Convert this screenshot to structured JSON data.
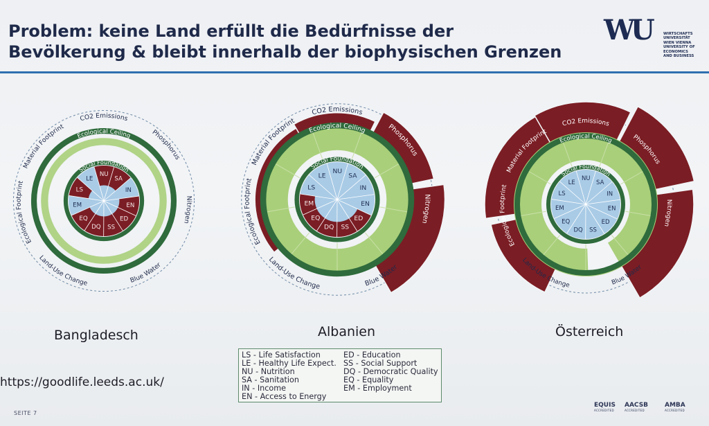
{
  "title": {
    "line1": "Problem: keine Land erfüllt die Bedürfnisse der",
    "line2": "Bevölkerung & bleibt innerhalb der biophysischen Grenzen"
  },
  "logo": {
    "mark": "WU",
    "lines": [
      "WIRTSCHAFTS",
      "UNIVERSITÄT",
      "WIEN VIENNA",
      "UNIVERSITY OF",
      "ECONOMICS",
      "AND BUSINESS"
    ]
  },
  "diagram_labels": {
    "ceiling": "Ecological Ceiling",
    "foundation": "Social Foundation",
    "co2": "CO2 Emissions",
    "phosphorus": "Phosphorus",
    "nitrogen": "Nitrogen",
    "blue_water": "Blue Water",
    "land_use": "Land-Use Change",
    "eco_footprint": "Ecological Footprint",
    "material_footprint": "Material Footprint"
  },
  "social_codes": [
    "NU",
    "SA",
    "IN",
    "EN",
    "ED",
    "SS",
    "DQ",
    "EQ",
    "EM",
    "LS",
    "LE"
  ],
  "countries": [
    "Bangladesch",
    "Albanien",
    "Österreich"
  ],
  "legend": {
    "left": [
      "LS - Life Satisfaction",
      "LE - Healthy Life Expect.",
      "NU - Nutrition",
      "SA - Sanitation",
      "IN - Income",
      "EN - Access to Energy"
    ],
    "right": [
      "ED - Education",
      "SS - Social Support",
      "DQ - Democratic Quality",
      "EQ - Equality",
      "EM - Employment"
    ]
  },
  "url": "https://goodlife.leeds.ac.uk/",
  "footer": "SEITE 7",
  "accreditations": [
    "EQUIS",
    "AACSB",
    "AMBA"
  ],
  "accreditation_sub": "ACCREDITED",
  "colors": {
    "title": "#1f2a4a",
    "rule": "#2f6fb0",
    "dark_green": "#2f6b3c",
    "light_green": "#a9cf7a",
    "maroon": "#7b1d24",
    "light_blue": "#a9cbe6"
  }
}
